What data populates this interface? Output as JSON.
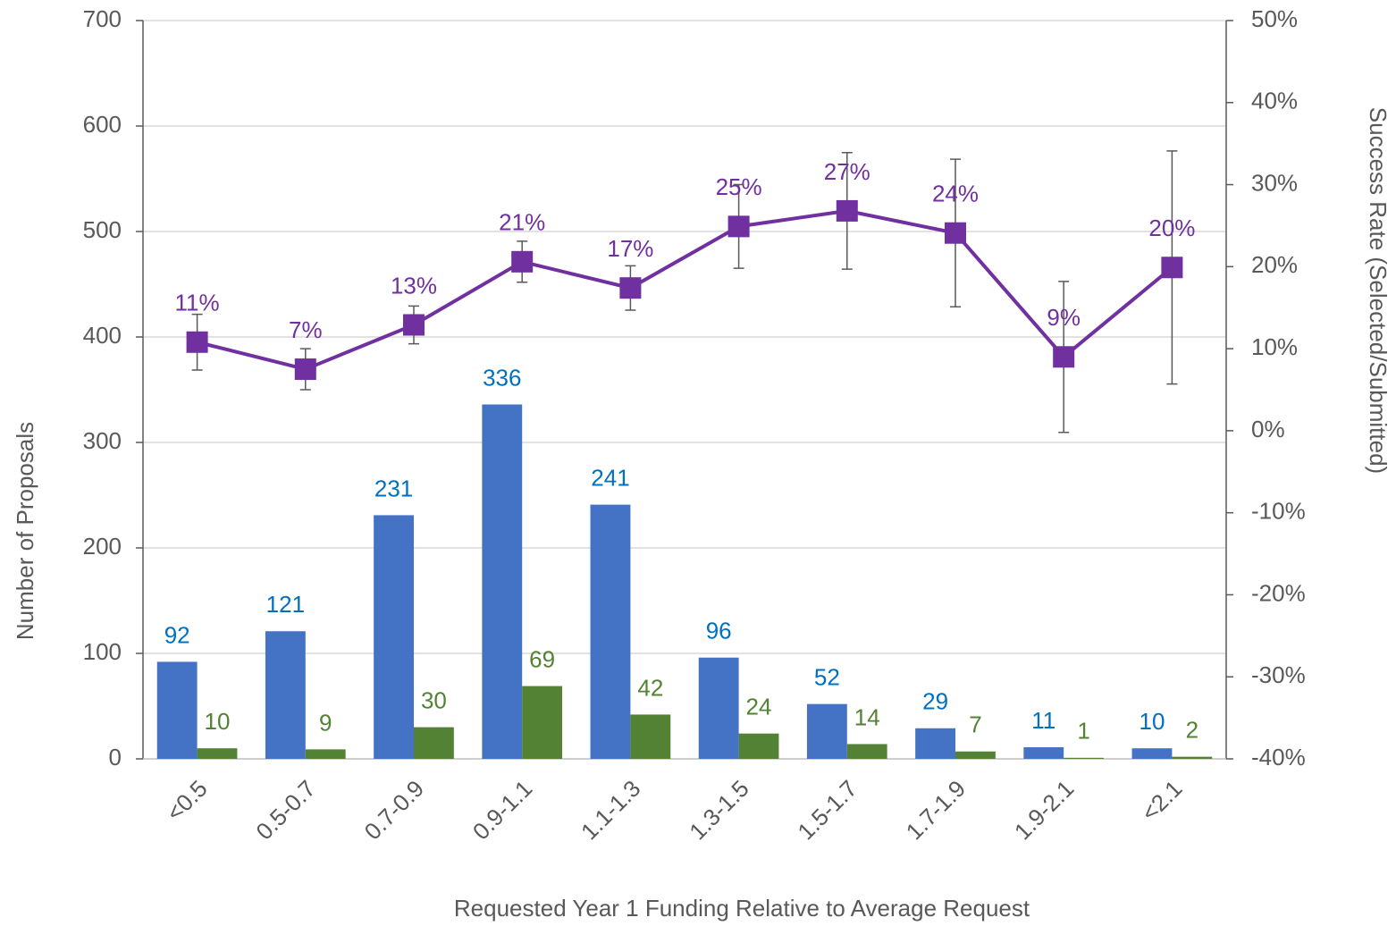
{
  "chart_data": {
    "type": "bar",
    "xlabel": "Requested Year 1 Funding Relative to Average Request",
    "ylabel": "Number of Proposals",
    "y2label": "Success Rate (Selected/Submitted)",
    "categories": [
      "<0.5",
      "0.5-0.7",
      "0.7-0.9",
      "0.9-1.1",
      "1.1-1.3",
      "1.3-1.5",
      "1.5-1.7",
      "1.7-1.9",
      "1.9-2.1",
      "<2.1"
    ],
    "series": [
      {
        "type": "bar",
        "color": "#4472c4",
        "label_color": "#0070c0",
        "values": [
          92,
          121,
          231,
          336,
          241,
          96,
          52,
          29,
          11,
          10
        ]
      },
      {
        "type": "bar",
        "color": "#548235",
        "label_color": "#548235",
        "values": [
          10,
          9,
          30,
          69,
          42,
          24,
          14,
          7,
          1,
          2
        ]
      },
      {
        "type": "line",
        "axis": "y2",
        "color": "#7030a0",
        "label_color": "#7030a0",
        "values": [
          10.8,
          7.5,
          12.9,
          20.6,
          17.4,
          24.9,
          26.8,
          24.1,
          9.0,
          19.9
        ],
        "value_labels": [
          "11%",
          "7%",
          "13%",
          "21%",
          "17%",
          "25%",
          "27%",
          "24%",
          "9%",
          "20%"
        ],
        "errors": [
          3.4,
          2.5,
          2.3,
          2.5,
          2.7,
          5.1,
          7.1,
          9.0,
          9.2,
          14.2
        ]
      }
    ],
    "ylim": [
      0,
      700
    ],
    "yticks": [
      0,
      100,
      200,
      300,
      400,
      500,
      600,
      700
    ],
    "y2lim": [
      -40,
      50
    ],
    "y2ticks": [
      {
        "value": -40,
        "label": "-40%"
      },
      {
        "value": -30,
        "label": "-30%"
      },
      {
        "value": -20,
        "label": "-20%"
      },
      {
        "value": -10,
        "label": "-10%"
      },
      {
        "value": 0,
        "label": "0%"
      },
      {
        "value": 10,
        "label": "10%"
      },
      {
        "value": 20,
        "label": "20%"
      },
      {
        "value": 30,
        "label": "30%"
      },
      {
        "value": 40,
        "label": "40%"
      },
      {
        "value": 50,
        "label": "50%"
      }
    ],
    "grid": true
  }
}
